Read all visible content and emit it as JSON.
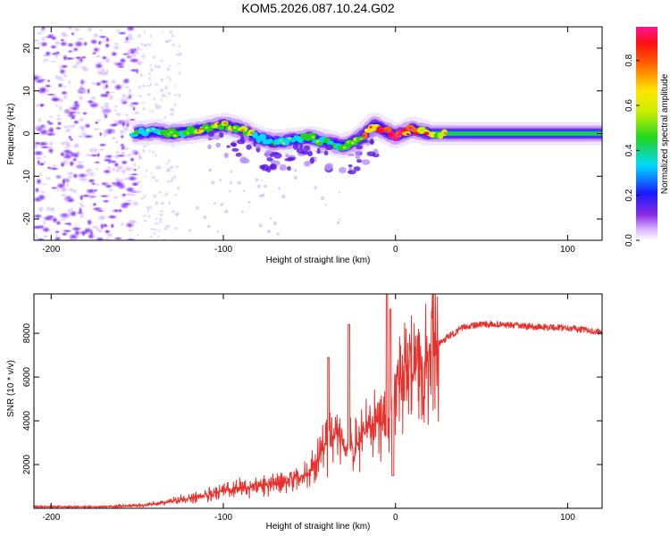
{
  "title": "KOM5.2026.087.10.24.G02",
  "chart_data": [
    {
      "type": "heatmap",
      "name": "spectrogram",
      "xlabel": "Height of straight line (km)",
      "ylabel": "Frequency (Hz)",
      "xlim": [
        -210,
        120
      ],
      "ylim": [
        -25,
        25
      ],
      "xticks": [
        -200,
        -100,
        0,
        100
      ],
      "yticks": [
        -20,
        -10,
        0,
        10,
        20
      ],
      "colorbar": {
        "label": "Normalized spectral amplitude",
        "range": [
          0,
          0.95
        ],
        "ticks": [
          0.0,
          0.2,
          0.4,
          0.6,
          0.8
        ],
        "tick_labels": [
          "0.0",
          "0.2",
          "0.4",
          "0.6",
          "0.8"
        ]
      },
      "ridge": {
        "x": [
          -152,
          -140,
          -130,
          -120,
          -110,
          -100,
          -90,
          -80,
          -70,
          -60,
          -50,
          -40,
          -30,
          -20,
          -12,
          -5,
          0,
          10,
          20,
          40,
          60,
          80,
          100,
          120
        ],
        "y": [
          0,
          0.5,
          0,
          0.5,
          1,
          2,
          1,
          -1,
          -2,
          -1.5,
          -1,
          -2,
          -3,
          -1,
          2,
          0.5,
          -0.5,
          1,
          0,
          0,
          0,
          0,
          0,
          0
        ],
        "amplitude": [
          0.3,
          0.3,
          0.4,
          0.45,
          0.5,
          0.55,
          0.5,
          0.35,
          0.3,
          0.3,
          0.35,
          0.4,
          0.45,
          0.6,
          0.75,
          0.85,
          0.9,
          0.8,
          0.55,
          0.45,
          0.4,
          0.4,
          0.4,
          0.4
        ]
      }
    },
    {
      "type": "line",
      "name": "snr",
      "xlabel": "Height of straight line (km)",
      "ylabel": "SNR (10 * v/v)",
      "xlim": [
        -210,
        120
      ],
      "ylim": [
        0,
        9800
      ],
      "xticks": [
        -200,
        -100,
        0,
        100
      ],
      "yticks": [
        2000,
        4000,
        6000,
        8000
      ],
      "color": "#e8302c",
      "series": [
        {
          "name": "SNR",
          "x": [
            -210,
            -190,
            -170,
            -150,
            -140,
            -130,
            -120,
            -110,
            -100,
            -90,
            -80,
            -70,
            -60,
            -50,
            -45,
            -40,
            -35,
            -30,
            -25,
            -20,
            -15,
            -10,
            -5,
            0,
            5,
            10,
            15,
            20,
            25,
            30,
            40,
            50,
            60,
            80,
            100,
            120
          ],
          "y": [
            80,
            60,
            70,
            120,
            200,
            320,
            450,
            600,
            800,
            950,
            1000,
            1100,
            1300,
            1600,
            2300,
            2900,
            3400,
            3000,
            2700,
            3100,
            3700,
            4200,
            3400,
            5700,
            6100,
            6400,
            6700,
            7000,
            7500,
            7800,
            8300,
            8400,
            8400,
            8300,
            8250,
            8050
          ]
        }
      ],
      "spikes": [
        {
          "x": -39,
          "y": 6900
        },
        {
          "x": -27,
          "y": 8400
        },
        {
          "x": -5,
          "y": 9800
        },
        {
          "x": -3,
          "y": 9100
        }
      ]
    }
  ]
}
